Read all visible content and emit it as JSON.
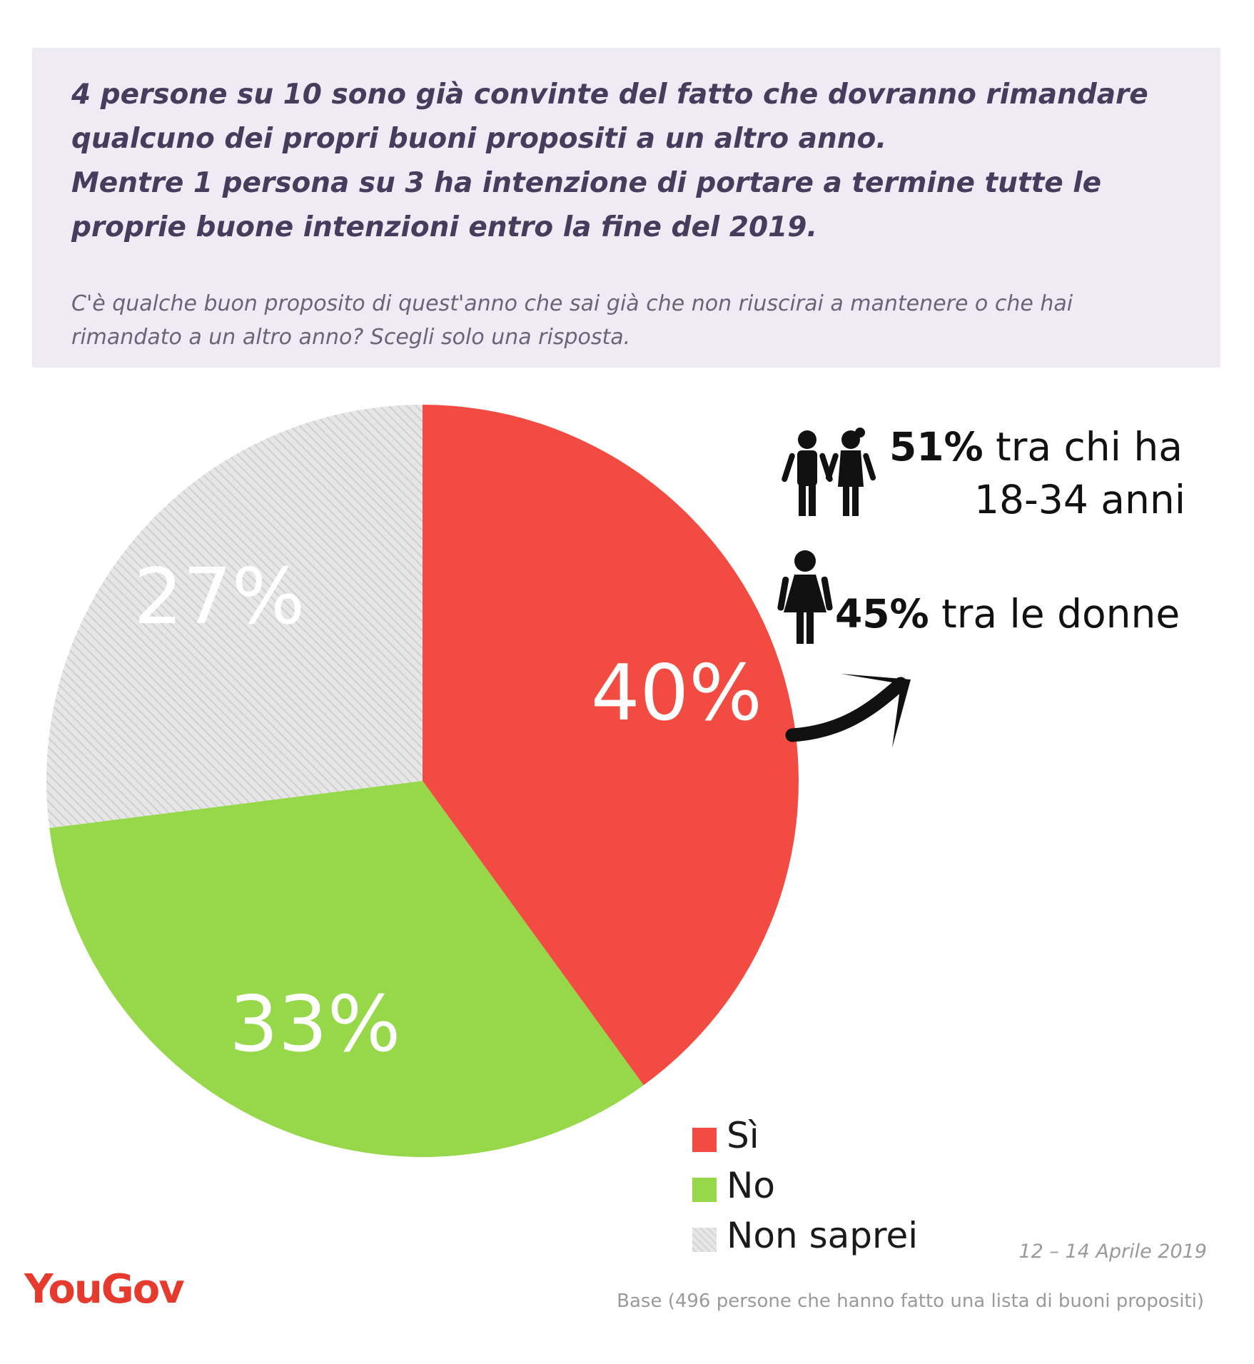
{
  "header": {
    "headline_lines": [
      "4 persone su 10 sono già convinte del fatto che dovranno rimandare",
      "qualcuno dei propri buoni propositi a un altro anno.",
      "Mentre 1 persona su 3 ha intenzione di portare a termine tutte le",
      "proprie buone intenzioni entro la fine del 2019."
    ],
    "question_lines": [
      "C'è qualche buon proposito di quest'anno che sai già che non riuscirai a mantenere o che hai",
      "rimandato a un altro anno? Scegli solo una risposta."
    ]
  },
  "chart_data": {
    "type": "pie",
    "title": "",
    "slices": [
      {
        "label": "Sì",
        "value": 40,
        "display": "40%",
        "color": "#f24b42"
      },
      {
        "label": "No",
        "value": 33,
        "display": "33%",
        "color": "#96d84a"
      },
      {
        "label": "Non saprei",
        "value": 27,
        "display": "27%",
        "color": "#dedede",
        "pattern": "diagonal-hatch"
      }
    ],
    "start_angle": "12 o'clock",
    "direction": "clockwise",
    "legend": [
      "Sì",
      "No",
      "Non saprei"
    ],
    "legend_position": "bottom-right"
  },
  "callouts": [
    {
      "bold": "51%",
      "text_line1": " tra chi ha",
      "text_line2": "18-34 anni",
      "icon": "boy-girl-icon"
    },
    {
      "bold": "45%",
      "text": " tra le donne",
      "icon": "woman-icon"
    }
  ],
  "footer": {
    "date": "12 – 14 Aprile 2019",
    "base": "Base (496 persone che hanno fatto una lista di buoni propositi)",
    "logo": "YouGov"
  },
  "colors": {
    "header_background": "#eeebf5",
    "headline_text": "#463c5c",
    "question_text": "#6b6478",
    "logo": "#e63a2e"
  }
}
